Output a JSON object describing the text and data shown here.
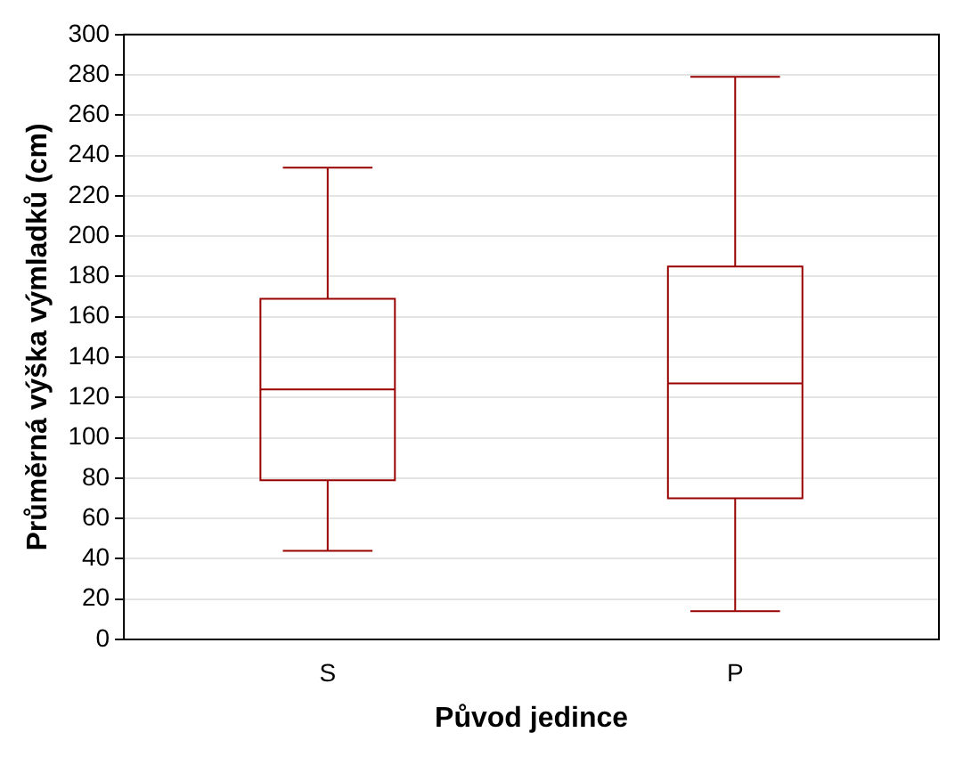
{
  "chart_data": {
    "type": "box",
    "xlabel": "Původ jedince",
    "ylabel": "Průměrná výška výmladků (cm)",
    "categories": [
      "S",
      "P"
    ],
    "color": "#990000",
    "boxes": [
      {
        "low": 44,
        "q1": 79,
        "median": 124,
        "q3": 169,
        "high": 234
      },
      {
        "low": 14,
        "q1": 70,
        "median": 127,
        "q3": 185,
        "high": 279
      }
    ],
    "ylim": [
      0,
      300
    ],
    "yticks": [
      0,
      20,
      40,
      60,
      80,
      100,
      120,
      140,
      160,
      180,
      200,
      220,
      240,
      260,
      280,
      300
    ],
    "grid": "y"
  }
}
